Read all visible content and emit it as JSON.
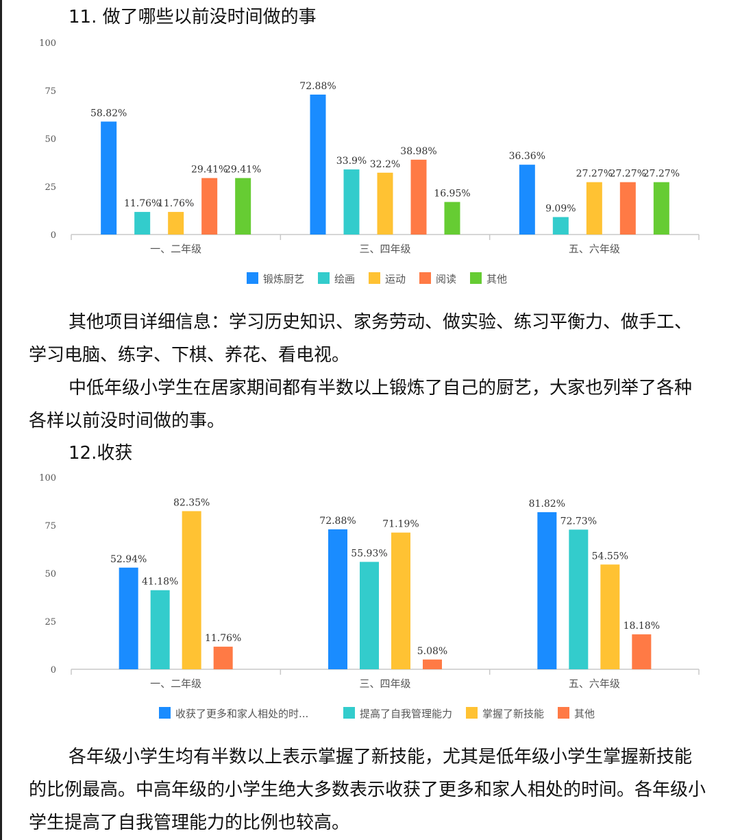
{
  "section11": {
    "title": "11. 做了哪些以前没时间做的事",
    "paragraph1": "其他项目详细信息：学习历史知识、家务劳动、做实验、练习平衡力、做手工、学习电脑、练字、下棋、养花、看电视。",
    "paragraph2": "中低年级小学生在居家期间都有半数以上锻炼了自己的厨艺，大家也列举了各种各样以前没时间做的事。"
  },
  "section12": {
    "title": "12.收获",
    "paragraph1": "各年级小学生均有半数以上表示掌握了新技能，尤其是低年级小学生掌握新技能的比例最高。中高年级的小学生绝大多数表示收获了更多和家人相处的时间。各年级小学生提高了自我管理能力的比例也较高。"
  },
  "chart_data": [
    {
      "type": "bar",
      "title": "",
      "categories": [
        "一、二年级",
        "三、四年级",
        "五、六年级"
      ],
      "yticks": [
        "0",
        "25",
        "50",
        "75",
        "100"
      ],
      "ylim": [
        0,
        100
      ],
      "legend_position": "bottom",
      "grid": false,
      "series": [
        {
          "name": "锻炼厨艺",
          "color": "#1a8cff",
          "values": [
            58.82,
            72.88,
            36.36
          ],
          "labels": [
            "58.82%",
            "72.88%",
            "36.36%"
          ]
        },
        {
          "name": "绘画",
          "color": "#33cccc",
          "values": [
            11.76,
            33.9,
            9.09
          ],
          "labels": [
            "11.76%",
            "33.9%",
            "9.09%"
          ]
        },
        {
          "name": "运动",
          "color": "#ffc233",
          "values": [
            11.76,
            32.2,
            27.27
          ],
          "labels": [
            "11.76%",
            "32.2%",
            "27.27%"
          ]
        },
        {
          "name": "阅读",
          "color": "#ff7a45",
          "values": [
            29.41,
            38.98,
            27.27
          ],
          "labels": [
            "29.41%",
            "38.98%",
            "27.27%"
          ]
        },
        {
          "name": "其他",
          "color": "#66cc33",
          "values": [
            29.41,
            16.95,
            27.27
          ],
          "labels": [
            "29.41%",
            "16.95%",
            "27.27%"
          ]
        }
      ]
    },
    {
      "type": "bar",
      "title": "",
      "categories": [
        "一、二年级",
        "三、四年级",
        "五、六年级"
      ],
      "yticks": [
        "0",
        "25",
        "50",
        "75",
        "100"
      ],
      "ylim": [
        0,
        100
      ],
      "legend_position": "bottom",
      "grid": false,
      "series": [
        {
          "name": "收获了更多和家人相处的时...",
          "color": "#1a8cff",
          "values": [
            52.94,
            72.88,
            81.82
          ],
          "labels": [
            "52.94%",
            "72.88%",
            "81.82%"
          ]
        },
        {
          "name": "提高了自我管理能力",
          "color": "#33cccc",
          "values": [
            41.18,
            55.93,
            72.73
          ],
          "labels": [
            "41.18%",
            "55.93%",
            "72.73%"
          ]
        },
        {
          "name": "掌握了新技能",
          "color": "#ffc233",
          "values": [
            82.35,
            71.19,
            54.55
          ],
          "labels": [
            "82.35%",
            "71.19%",
            "54.55%"
          ]
        },
        {
          "name": "其他",
          "color": "#ff7a45",
          "values": [
            11.76,
            5.08,
            18.18
          ],
          "labels": [
            "11.76%",
            "5.08%",
            "18.18%"
          ]
        }
      ]
    }
  ]
}
